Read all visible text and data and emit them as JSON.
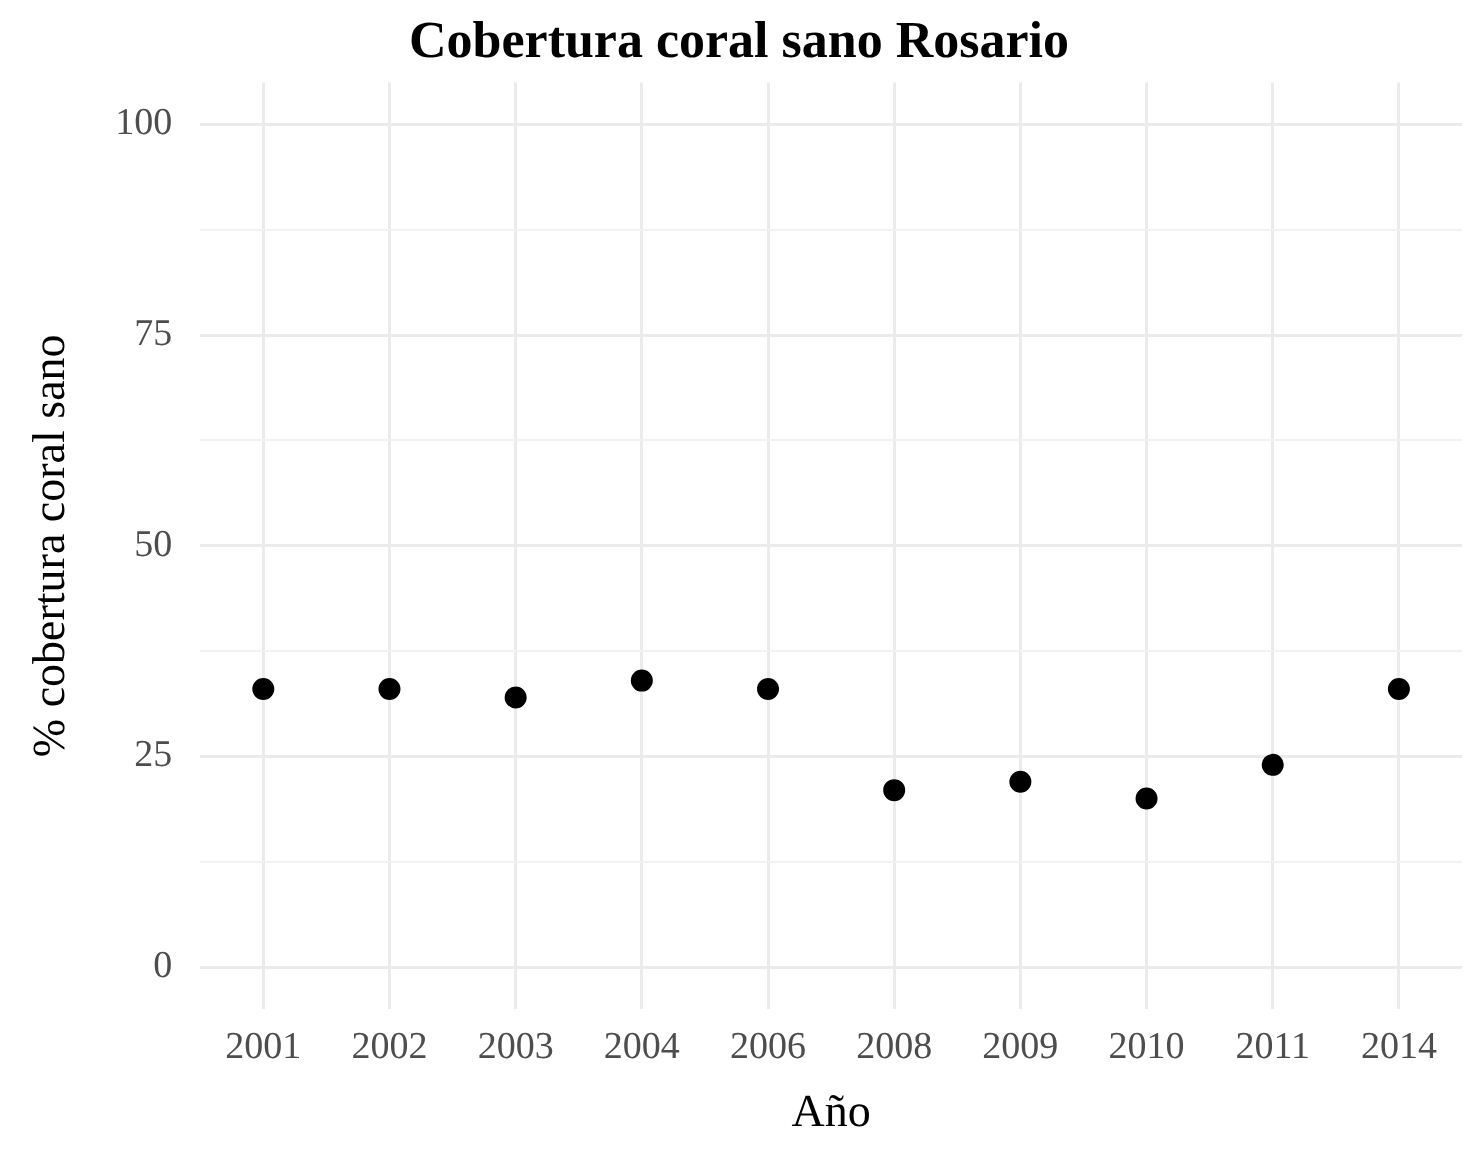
{
  "chart_data": {
    "type": "scatter",
    "title": "Cobertura coral sano Rosario",
    "xlabel": "Año",
    "ylabel": "% cobertura coral sano",
    "categories": [
      "2001",
      "2002",
      "2003",
      "2004",
      "2006",
      "2008",
      "2009",
      "2010",
      "2011",
      "2014"
    ],
    "series": [
      {
        "color": "#000000",
        "values": [
          33,
          33,
          32,
          34,
          33,
          21,
          22,
          20,
          24,
          33
        ]
      }
    ],
    "ylim": [
      -5,
      105
    ],
    "yticks": [
      0,
      {
        "value": 12.5,
        "label": null
      },
      25,
      {
        "value": 37.5,
        "label": null
      },
      50,
      {
        "value": 62.5,
        "label": null
      },
      75,
      {
        "value": 87.5,
        "label": null
      },
      100
    ],
    "grid": true,
    "legend": false,
    "marker": "circle"
  }
}
